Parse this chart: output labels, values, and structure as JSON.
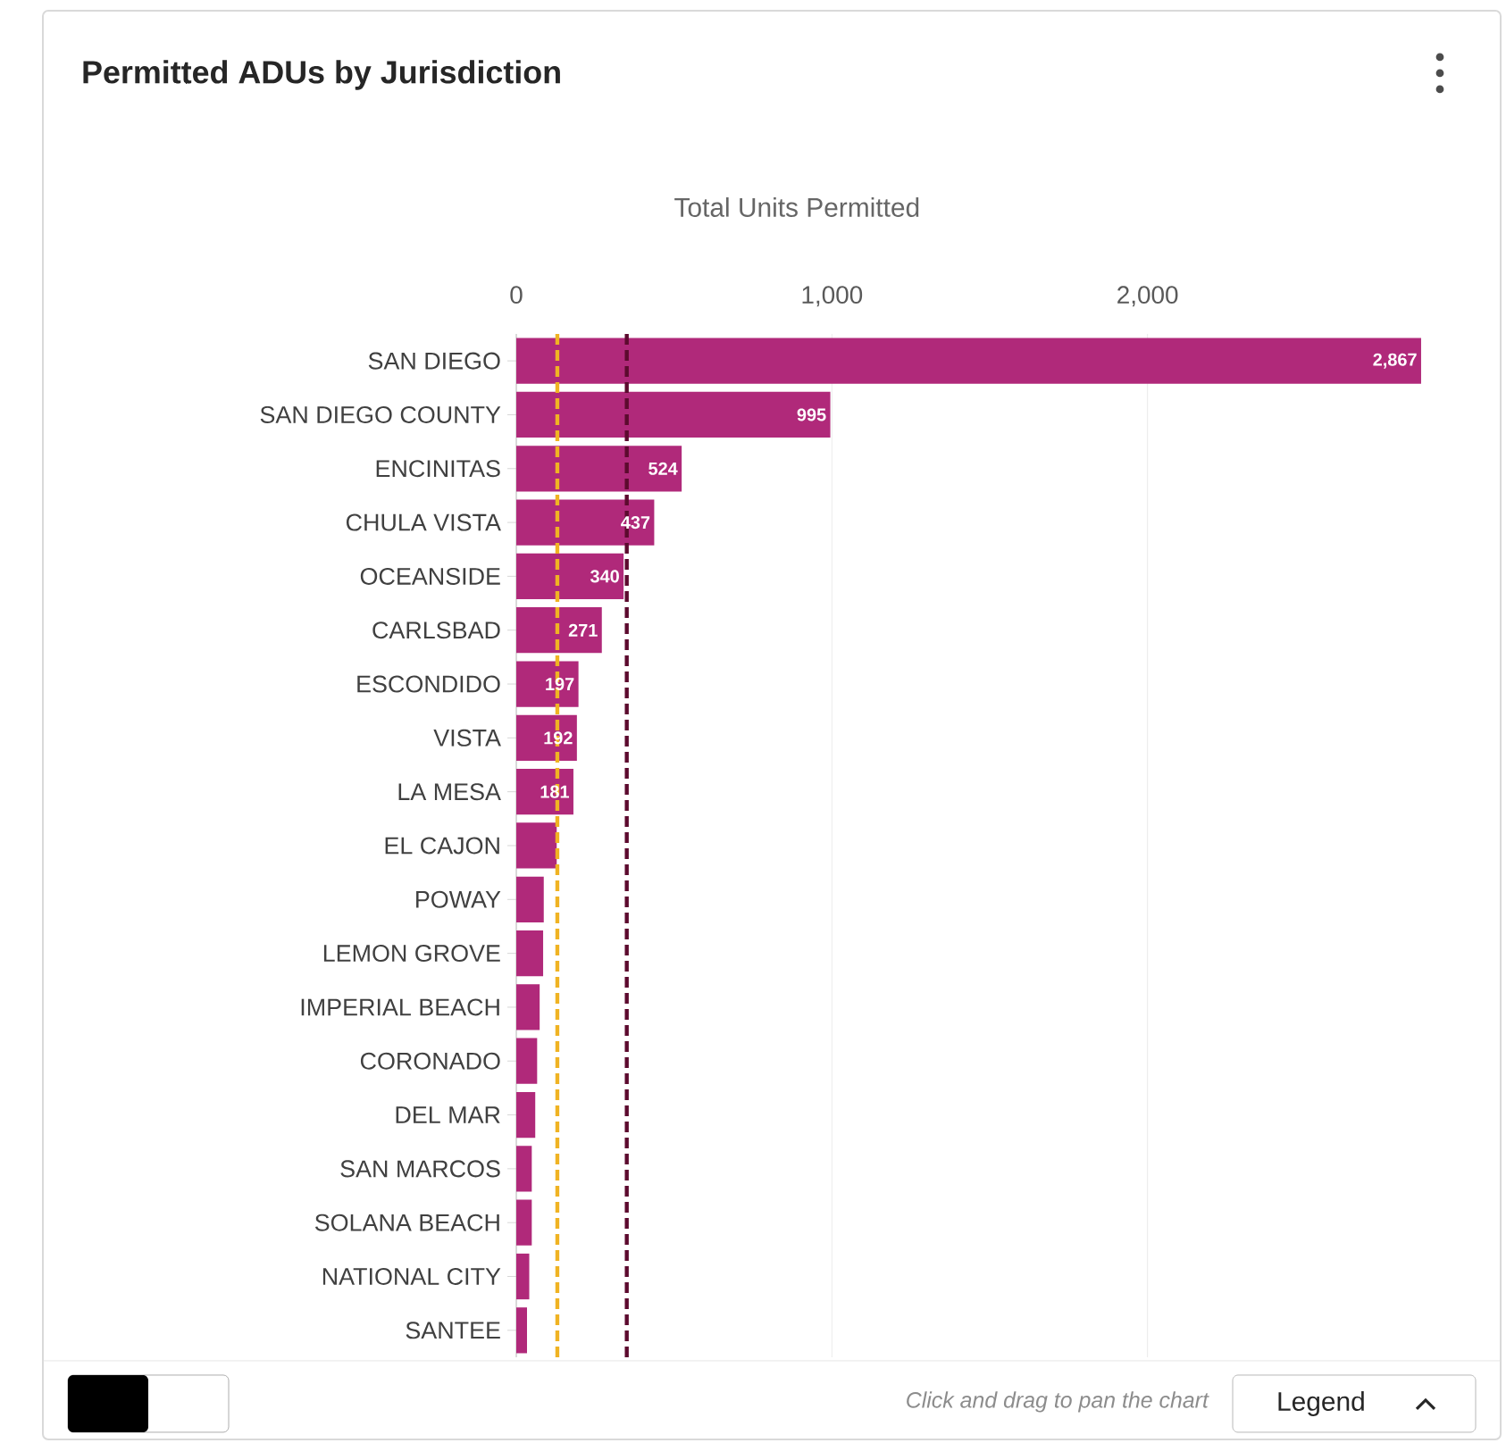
{
  "chart_data": {
    "type": "bar",
    "orientation": "horizontal",
    "title": "Permitted ADUs by Jurisdiction",
    "xlabel": "Total Units Permitted",
    "categories": [
      "SAN DIEGO",
      "SAN DIEGO COUNTY",
      "ENCINITAS",
      "CHULA VISTA",
      "OCEANSIDE",
      "CARLSBAD",
      "ESCONDIDO",
      "VISTA",
      "LA MESA",
      "EL CAJON",
      "POWAY",
      "LEMON GROVE",
      "IMPERIAL BEACH",
      "CORONADO",
      "DEL MAR",
      "SAN MARCOS",
      "SOLANA BEACH",
      "NATIONAL CITY",
      "SANTEE"
    ],
    "values": [
      2867,
      995,
      524,
      437,
      340,
      271,
      197,
      192,
      181,
      128,
      87,
      85,
      74,
      66,
      60,
      49,
      49,
      41,
      34
    ],
    "value_labels": [
      "2,867",
      "995",
      "524",
      "437",
      "340",
      "271",
      "197",
      "192",
      "181",
      null,
      null,
      null,
      null,
      null,
      null,
      null,
      null,
      null,
      null
    ],
    "color": "#b0297a",
    "xlim": [
      0,
      2870
    ],
    "xticks": [
      0,
      {
        "value": 1000,
        "label": "1,000"
      },
      {
        "value": 2000,
        "label": "2,000"
      }
    ],
    "grid": "x",
    "ref_lines": [
      {
        "axis": "x",
        "value": 130,
        "color": "#f0b323",
        "line_style": "dashed"
      },
      {
        "axis": "x",
        "value": 350,
        "color": "#5c0a2e",
        "line_style": "dashed"
      }
    ],
    "annotations": [
      "Click and drag to pan the chart",
      "Legend"
    ]
  }
}
